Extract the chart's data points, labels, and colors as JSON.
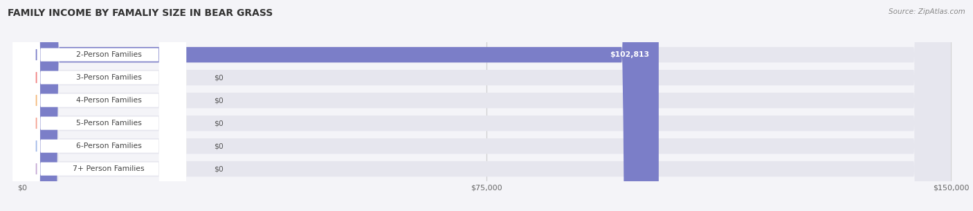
{
  "title": "FAMILY INCOME BY FAMALIY SIZE IN BEAR GRASS",
  "source": "Source: ZipAtlas.com",
  "categories": [
    "2-Person Families",
    "3-Person Families",
    "4-Person Families",
    "5-Person Families",
    "6-Person Families",
    "7+ Person Families"
  ],
  "values": [
    102813,
    0,
    0,
    0,
    0,
    0
  ],
  "bar_colors": [
    "#7b7ec8",
    "#f08080",
    "#f4b87a",
    "#f4a090",
    "#a0b8e8",
    "#c4a8d4"
  ],
  "xlim": [
    0,
    150000
  ],
  "xticks": [
    0,
    75000,
    150000
  ],
  "xtick_labels": [
    "$0",
    "$75,000",
    "$150,000"
  ],
  "value_label_nonzero": "$102,813",
  "background_color": "#f4f4f8",
  "bar_bg_color": "#e6e6ee",
  "title_fontsize": 10,
  "source_fontsize": 7.5
}
